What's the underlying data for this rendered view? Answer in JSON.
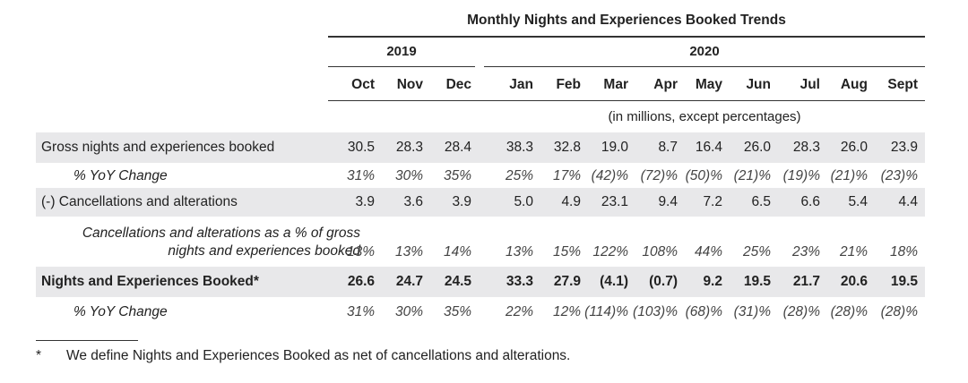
{
  "title": "Monthly Nights and Experiences Booked Trends",
  "years": [
    "2019",
    "2020"
  ],
  "months": [
    "Oct",
    "Nov",
    "Dec",
    "Jan",
    "Feb",
    "Mar",
    "Apr",
    "May",
    "Jun",
    "Jul",
    "Aug",
    "Sept"
  ],
  "units_note": "(in millions, except percentages)",
  "rows": [
    {
      "label": "Gross nights and experiences booked",
      "values": [
        "30.5",
        "28.3",
        "28.4",
        "38.3",
        "32.8",
        "19.0",
        "8.7",
        "16.4",
        "26.0",
        "28.3",
        "26.0",
        "23.9"
      ]
    },
    {
      "label": "% YoY Change",
      "values": [
        "31%",
        "30%",
        "35%",
        "25%",
        "17%",
        "(42)%",
        "(72)%",
        "(50)%",
        "(21)%",
        "(19)%",
        "(21)%",
        "(23)%"
      ]
    },
    {
      "label": "(-) Cancellations and alterations",
      "values": [
        "3.9",
        "3.6",
        "3.9",
        "5.0",
        "4.9",
        "23.1",
        "9.4",
        "7.2",
        "6.5",
        "6.6",
        "5.4",
        "4.4"
      ]
    },
    {
      "label": "Cancellations and alterations as a % of gross nights and experiences booked",
      "values": [
        "13%",
        "13%",
        "14%",
        "13%",
        "15%",
        "122%",
        "108%",
        "44%",
        "25%",
        "23%",
        "21%",
        "18%"
      ]
    },
    {
      "label": "Nights and Experiences Booked*",
      "values": [
        "26.6",
        "24.7",
        "24.5",
        "33.3",
        "27.9",
        "(4.1)",
        "(0.7)",
        "9.2",
        "19.5",
        "21.7",
        "20.6",
        "19.5"
      ]
    },
    {
      "label": "% YoY Change",
      "values": [
        "31%",
        "30%",
        "35%",
        "22%",
        "12%",
        "(114)%",
        "(103)%",
        "(68)%",
        "(31)%",
        "(28)%",
        "(28)%",
        "(28)%"
      ]
    }
  ],
  "footnote": {
    "marker": "*",
    "text": "We define Nights and Experiences Booked as net of cancellations and alterations."
  }
}
